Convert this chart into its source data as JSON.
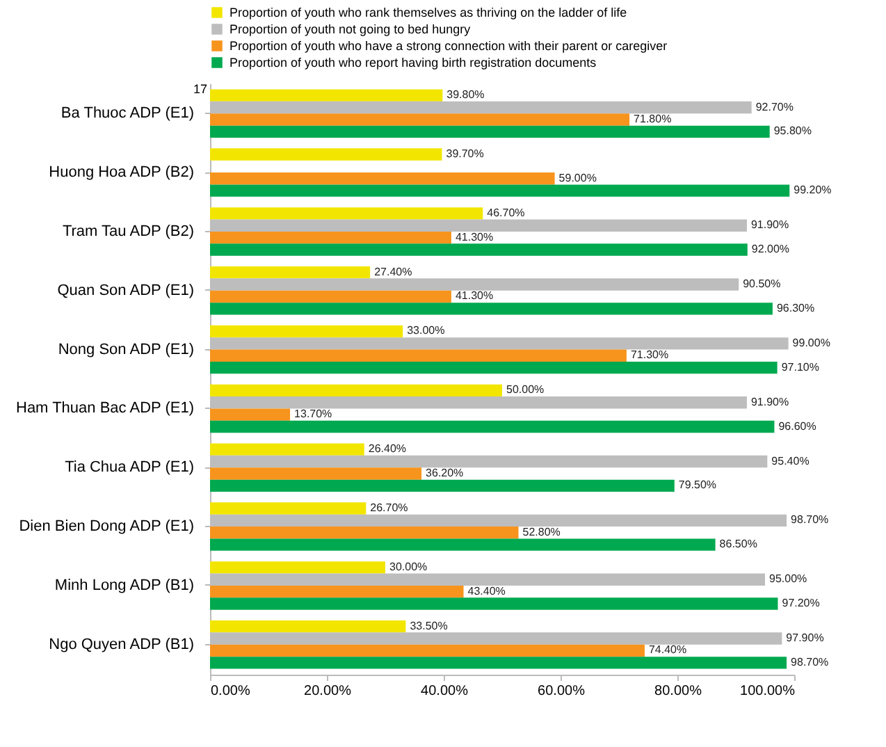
{
  "chart_data": {
    "type": "bar",
    "orientation": "horizontal",
    "categories": [
      "Ba Thuoc ADP (E1)",
      "Huong Hoa ADP (B2)",
      "Tram Tau ADP (B2)",
      "Quan Son ADP (E1)",
      "Nong Son ADP (E1)",
      "Ham Thuan Bac ADP (E1)",
      "Tia Chua ADP (E1)",
      "Dien Bien Dong ADP (E1)",
      "Minh Long ADP (B1)",
      "Ngo Quyen ADP (B1)"
    ],
    "series": [
      {
        "name": "Proportion of youth who rank themselves as thriving on the ladder of life",
        "color": "#f2e600",
        "values": [
          39.8,
          39.7,
          46.7,
          27.4,
          33.0,
          50.0,
          26.4,
          26.7,
          30.0,
          33.5
        ],
        "value_labels": [
          "39.80%",
          "39.70%",
          "46.70%",
          "27.40%",
          "33.00%",
          "50.00%",
          "26.40%",
          "26.70%",
          "30.00%",
          "33.50%"
        ]
      },
      {
        "name": "Proportion of youth not going to bed hungry",
        "color": "#bdbdbd",
        "values": [
          92.7,
          null,
          91.9,
          90.5,
          99.0,
          91.9,
          95.4,
          98.7,
          95.0,
          97.9
        ],
        "value_labels": [
          "92.70%",
          null,
          "91.90%",
          "90.50%",
          "99.00%",
          "91.90%",
          "95.40%",
          "98.70%",
          "95.00%",
          "97.90%"
        ]
      },
      {
        "name": "Proportion of youth who have a strong connection with their parent or caregiver",
        "color": "#f7941d",
        "values": [
          71.8,
          59.0,
          41.3,
          41.3,
          71.3,
          13.7,
          36.2,
          52.8,
          43.4,
          74.4
        ],
        "value_labels": [
          "71.80%",
          "59.00%",
          "41.30%",
          "41.30%",
          "71.30%",
          "13.70%",
          "36.20%",
          "52.80%",
          "43.40%",
          "74.40%"
        ]
      },
      {
        "name": "Proportion of youth who report having birth registration documents",
        "color": "#00a94f",
        "values": [
          95.8,
          99.2,
          92.0,
          96.3,
          97.1,
          96.6,
          79.5,
          86.5,
          97.2,
          98.7
        ],
        "value_labels": [
          "95.80%",
          "99.20%",
          "92.00%",
          "96.30%",
          "97.10%",
          "96.60%",
          "79.50%",
          "86.50%",
          "97.20%",
          "98.70%"
        ]
      }
    ],
    "xlim": [
      0,
      100
    ],
    "xticks": [
      {
        "value": 0,
        "label": "0.00%"
      },
      {
        "value": 20,
        "label": "20.00%"
      },
      {
        "value": 40,
        "label": "40.00%"
      },
      {
        "value": 60,
        "label": "60.00%"
      },
      {
        "value": 80,
        "label": "80.00%"
      },
      {
        "value": 100,
        "label": "100.00%"
      }
    ],
    "legend": "top",
    "annotations": [
      "17"
    ]
  }
}
